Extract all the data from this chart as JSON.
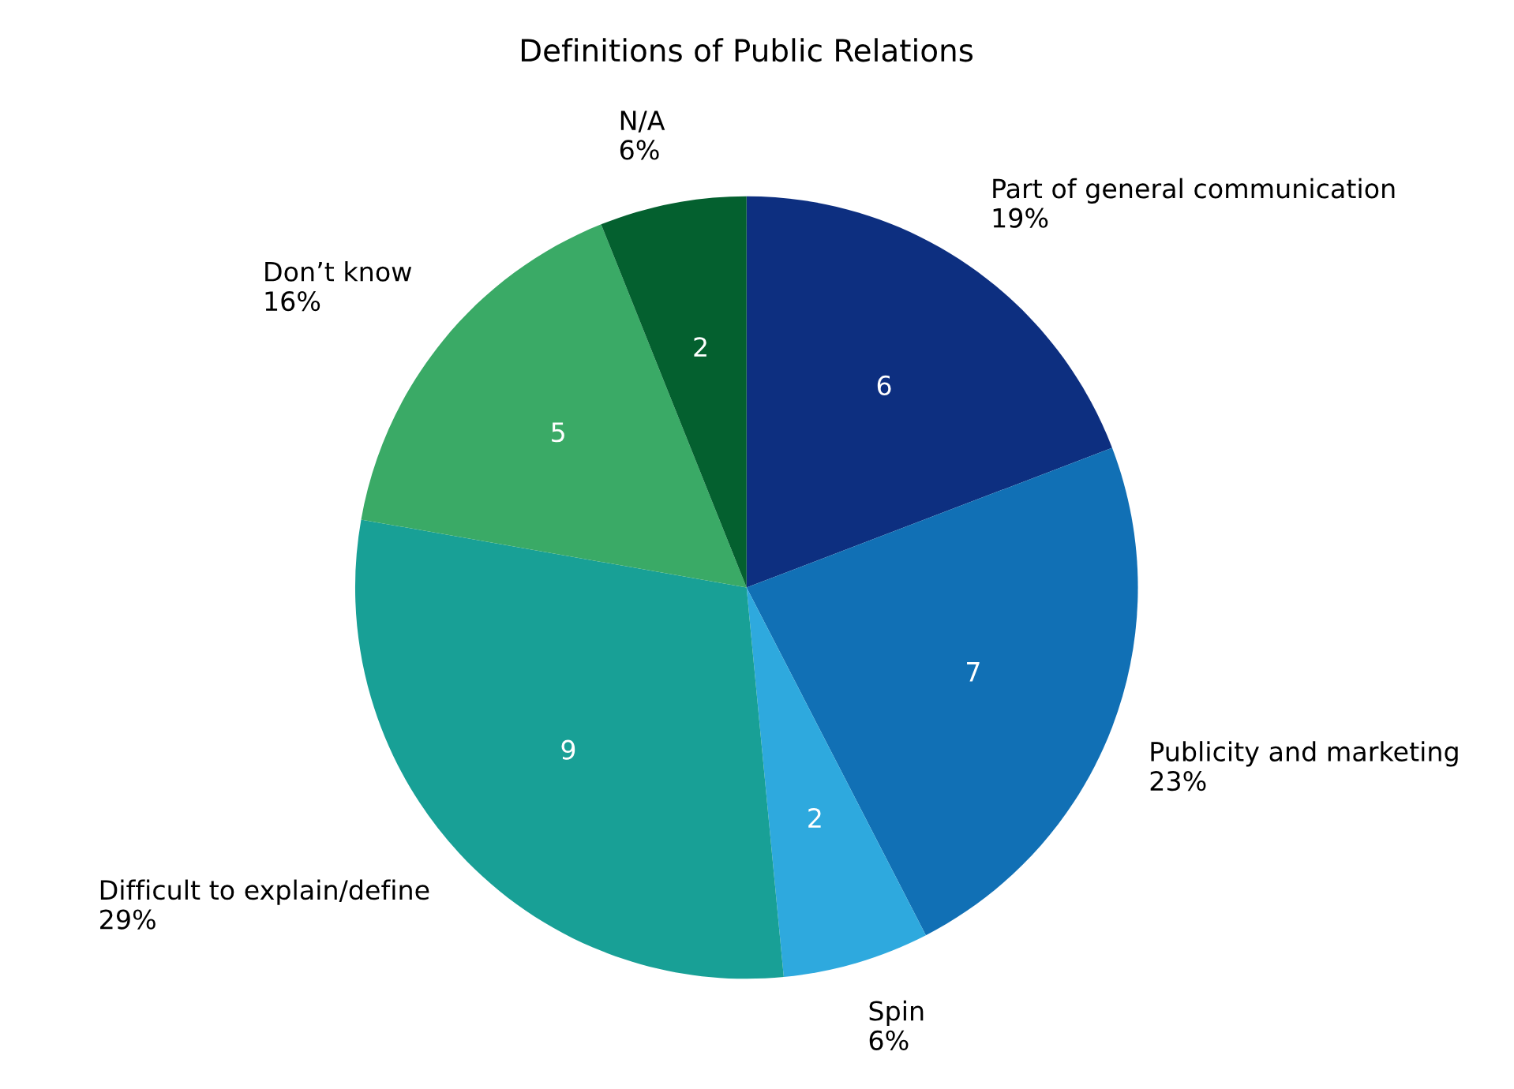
{
  "chart_data": {
    "type": "pie",
    "title": "Definitions of Public Relations",
    "categories": [
      "Part of general communication",
      "Publicity and marketing",
      "Spin",
      "Difficult to explain/define",
      "Don’t know",
      "N/A"
    ],
    "values": [
      19,
      23,
      6,
      29,
      16,
      6
    ],
    "value_labels": [
      "19%",
      "23%",
      "6%",
      "29%",
      "16%",
      "6%"
    ],
    "colors": [
      "#0d2f80",
      "#1170b5",
      "#2ea9de",
      "#18a096",
      "#3aaa66",
      "#04602f"
    ],
    "annotations": [
      {
        "text": "6",
        "x": "Part of general communication"
      },
      {
        "text": "7",
        "x": "Publicity and marketing"
      },
      {
        "text": "2",
        "x": "Spin"
      },
      {
        "text": "9",
        "x": "Difficult to explain/define"
      },
      {
        "text": "5",
        "x": "Don’t know"
      },
      {
        "text": "2",
        "x": "N/A"
      }
    ],
    "legend": false
  }
}
